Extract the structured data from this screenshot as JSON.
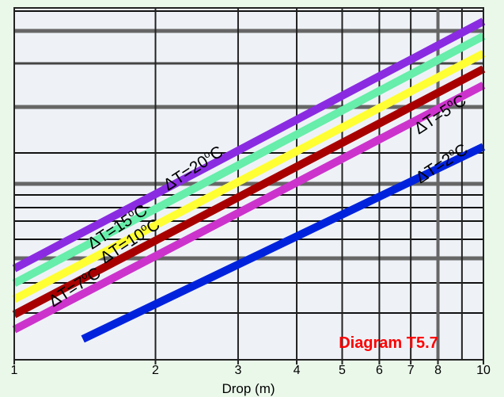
{
  "chart_data": {
    "type": "line",
    "title": "",
    "xlabel": "Drop (m)",
    "ylabel": "",
    "x_scale": "log",
    "xlim": [
      1,
      10
    ],
    "x_ticks": [
      1,
      2,
      3,
      4,
      5,
      6,
      7,
      8,
      10
    ],
    "x_tick_labels": [
      "1",
      "2",
      "3",
      "4",
      "5",
      "6",
      "7",
      "8",
      "10"
    ],
    "y_scale": "log",
    "y_ticks_shown": false,
    "grid": true,
    "annotation": {
      "text": "Diagram T5.7",
      "color": "#ff0000",
      "position": "bottom-right"
    },
    "series": [
      {
        "name": "ΔT=20°C",
        "label_text": "ΔT=20",
        "label_sup": "o",
        "label_unit": "C",
        "color": "#8a2be2",
        "x": [
          1,
          10
        ],
        "y": [
          0.0115,
          1.02
        ]
      },
      {
        "name": "ΔT=15°C",
        "label_text": "ΔT=15",
        "label_sup": "o",
        "label_unit": "C",
        "color": "#66eeaa",
        "x": [
          1,
          10
        ],
        "y": [
          0.0088,
          0.78
        ]
      },
      {
        "name": "ΔT=10°C",
        "label_text": "ΔT=10",
        "label_sup": "o",
        "label_unit": "C",
        "color": "#ffff33",
        "x": [
          1,
          10
        ],
        "y": [
          0.0066,
          0.57
        ]
      },
      {
        "name": "ΔT=7°C",
        "label_text": "ΔT=7",
        "label_sup": "o",
        "label_unit": "C",
        "color": "#a80000",
        "x": [
          1,
          10
        ],
        "y": [
          0.005,
          0.43
        ]
      },
      {
        "name": "ΔT=5°C",
        "label_text": "ΔT=5",
        "label_sup": "o",
        "label_unit": "C",
        "color": "#cc33cc",
        "x": [
          1,
          10
        ],
        "y": [
          0.0038,
          0.32
        ]
      },
      {
        "name": "ΔT=2°C",
        "label_text": "ΔT=2",
        "label_sup": "o",
        "label_unit": "C",
        "color": "#0022dd",
        "x": [
          1.4,
          10
        ],
        "y": [
          0.0032,
          0.105
        ]
      }
    ]
  }
}
